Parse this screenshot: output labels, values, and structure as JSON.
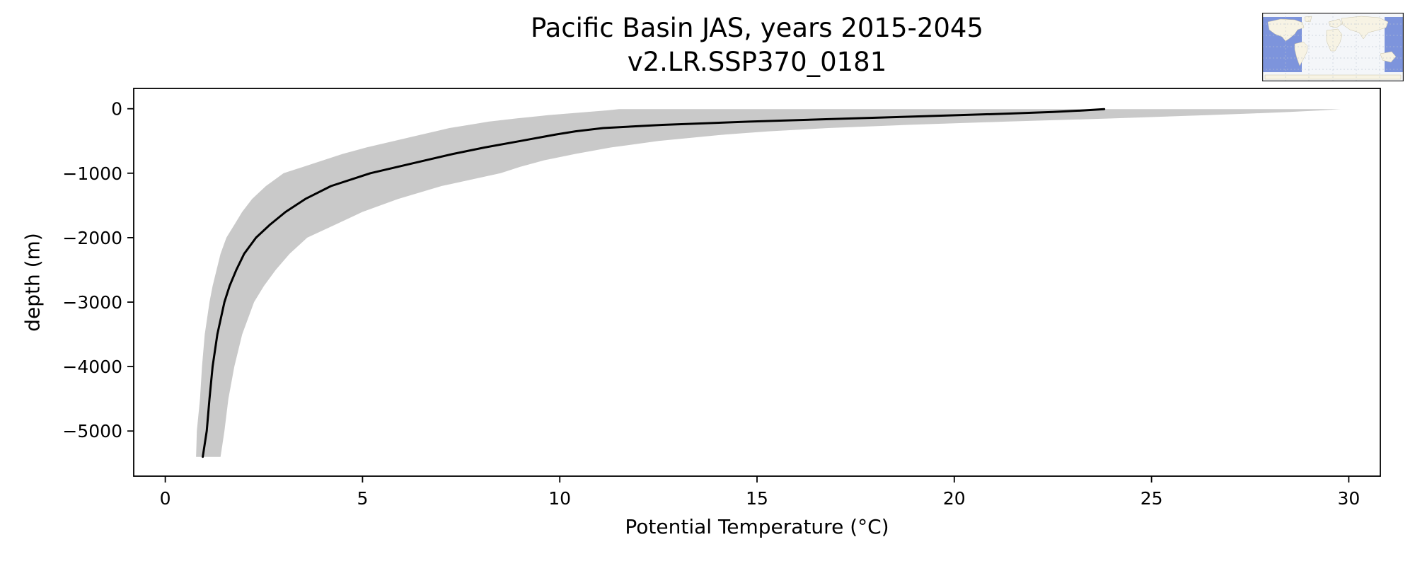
{
  "chart_data": {
    "type": "line",
    "title": "Pacific Basin JAS, years 2015-2045",
    "subtitle": "v2.LR.SSP370_0181",
    "xlabel": "Potential Temperature (°C)",
    "ylabel": "depth (m)",
    "xlim": [
      -0.8,
      30.8
    ],
    "ylim": [
      -5700,
      315
    ],
    "x_ticks": [
      0,
      5,
      10,
      15,
      20,
      25,
      30
    ],
    "y_ticks": [
      0,
      -1000,
      -2000,
      -3000,
      -4000,
      -5000
    ],
    "grid": false,
    "legend": "none",
    "depth_m": [
      -5,
      -25,
      -50,
      -75,
      -100,
      -150,
      -200,
      -250,
      -300,
      -350,
      -400,
      -500,
      -600,
      -700,
      -800,
      -900,
      -1000,
      -1200,
      -1400,
      -1600,
      -1800,
      -2000,
      -2250,
      -2500,
      -2750,
      -3000,
      -3500,
      -4000,
      -4500,
      -5000,
      -5200,
      -5400
    ],
    "series": [
      {
        "name": "mean potential temperature profile",
        "style": "line",
        "color": "#000000",
        "line_width": 3,
        "values": [
          23.8,
          23.3,
          22.5,
          21.4,
          20.1,
          17.4,
          14.8,
          12.6,
          11.1,
          10.4,
          9.9,
          9.0,
          8.1,
          7.3,
          6.6,
          5.9,
          5.2,
          4.2,
          3.55,
          3.05,
          2.65,
          2.3,
          2.0,
          1.8,
          1.63,
          1.5,
          1.32,
          1.2,
          1.12,
          1.05,
          1.0,
          0.95
        ]
      },
      {
        "name": "spatial spread band (min-max envelope)",
        "style": "band",
        "color": "#c9c9c9",
        "lower": [
          11.5,
          11.2,
          10.7,
          10.2,
          9.7,
          8.9,
          8.2,
          7.7,
          7.2,
          6.85,
          6.5,
          5.8,
          5.1,
          4.5,
          4.0,
          3.5,
          3.0,
          2.55,
          2.2,
          1.95,
          1.75,
          1.55,
          1.4,
          1.3,
          1.2,
          1.12,
          1.0,
          0.93,
          0.88,
          0.8,
          0.79,
          0.78
        ],
        "upper": [
          29.8,
          29.3,
          28.5,
          27.5,
          26.4,
          24.0,
          21.3,
          18.8,
          16.8,
          15.3,
          14.2,
          12.5,
          11.3,
          10.4,
          9.6,
          9.0,
          8.5,
          7.0,
          5.9,
          5.0,
          4.3,
          3.6,
          3.15,
          2.8,
          2.5,
          2.25,
          1.95,
          1.75,
          1.6,
          1.5,
          1.45,
          1.4
        ]
      }
    ]
  },
  "inset_map": {
    "description": "world map with Pacific basin highlighted",
    "highlight_color": "#5b79d4",
    "ocean_color": "#f4f6f9",
    "land_color": "#f7f3e4"
  }
}
